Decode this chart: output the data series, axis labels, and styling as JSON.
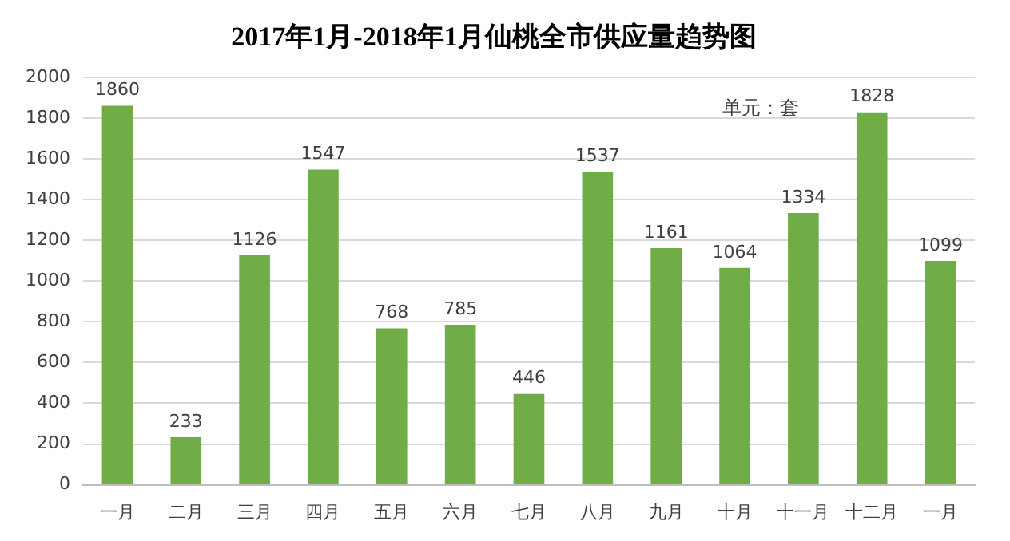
{
  "chart_data": {
    "type": "bar",
    "title": "2017年1月-2018年1月仙桃全市供应量趋势图",
    "categories": [
      "一月",
      "二月",
      "三月",
      "四月",
      "五月",
      "六月",
      "七月",
      "八月",
      "九月",
      "十月",
      "十一月",
      "十二月",
      "一月"
    ],
    "values": [
      1860,
      233,
      1126,
      1547,
      768,
      785,
      446,
      1537,
      1161,
      1064,
      1334,
      1828,
      1099
    ],
    "color": "#70ad47",
    "ylim": [
      0,
      2000
    ],
    "yticks": [
      0,
      200,
      400,
      600,
      800,
      1000,
      1200,
      1400,
      1600,
      1800,
      2000
    ],
    "grid": "y",
    "data_labels": true,
    "annotations": [
      "单元：套"
    ]
  }
}
